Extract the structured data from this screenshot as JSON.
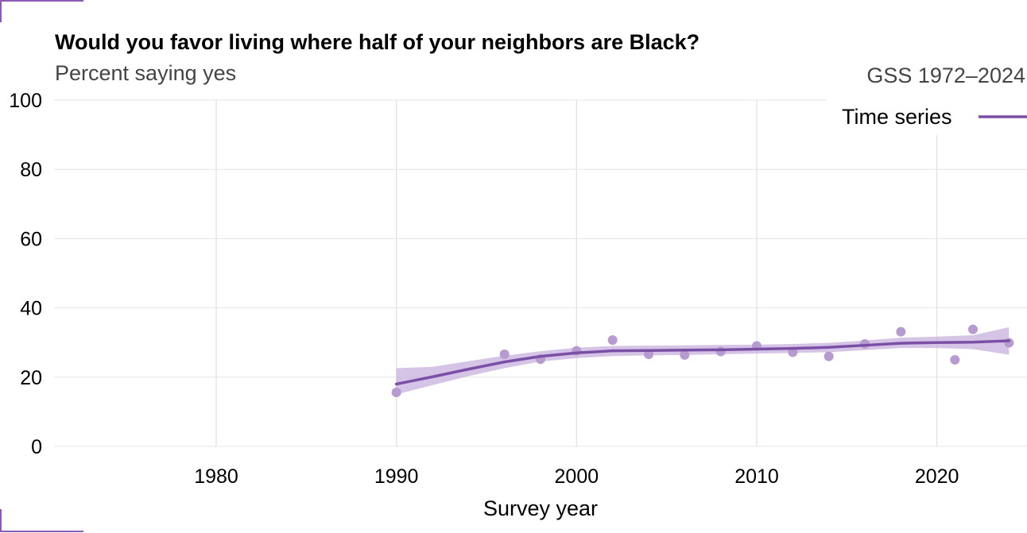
{
  "colors": {
    "series": "#7b4fa6",
    "band": "#c7b0dd",
    "points": "#b79acf",
    "corner": "#8a5bb5"
  },
  "chart_data": {
    "type": "line",
    "title": "Would you favor living where half of your neighbors are Black?",
    "subtitle": "Percent saying yes",
    "source_note": "GSS 1972–2024",
    "xlabel": "Survey year",
    "ylabel": "",
    "xlim": [
      1971,
      2025
    ],
    "ylim": [
      0,
      100
    ],
    "x_ticks": [
      1980,
      1990,
      2000,
      2010,
      2020
    ],
    "y_ticks": [
      0,
      20,
      40,
      60,
      80,
      100
    ],
    "grid": true,
    "legend": {
      "placement": "top-right",
      "entries": [
        "Time series"
      ]
    },
    "points": {
      "x": [
        1990,
        1996,
        1998,
        2000,
        2002,
        2004,
        2006,
        2008,
        2010,
        2012,
        2014,
        2016,
        2018,
        2021,
        2022,
        2024
      ],
      "y": [
        15.6,
        26.6,
        25.2,
        27.6,
        30.7,
        26.6,
        26.4,
        27.4,
        29.0,
        27.2,
        26.0,
        29.6,
        33.1,
        25.0,
        33.8,
        29.9
      ]
    },
    "series": [
      {
        "name": "Time series",
        "x": [
          1990,
          1992,
          1994,
          1996,
          1998,
          2000,
          2002,
          2004,
          2006,
          2008,
          2010,
          2012,
          2014,
          2016,
          2018,
          2020,
          2022,
          2024
        ],
        "y": [
          18.0,
          20.1,
          22.3,
          24.4,
          26.0,
          27.0,
          27.6,
          27.7,
          27.8,
          27.9,
          28.1,
          28.3,
          28.6,
          29.2,
          29.8,
          30.0,
          30.1,
          30.5
        ],
        "lower": [
          15.0,
          17.7,
          20.3,
          22.6,
          24.5,
          25.5,
          26.1,
          26.3,
          26.4,
          26.6,
          26.8,
          27.0,
          27.2,
          27.8,
          28.4,
          28.4,
          28.1,
          26.5
        ],
        "upper": [
          22.6,
          23.0,
          24.6,
          26.2,
          27.5,
          28.5,
          29.0,
          29.1,
          29.2,
          29.3,
          29.4,
          29.6,
          29.9,
          30.6,
          31.4,
          31.7,
          32.1,
          34.4
        ]
      }
    ]
  }
}
